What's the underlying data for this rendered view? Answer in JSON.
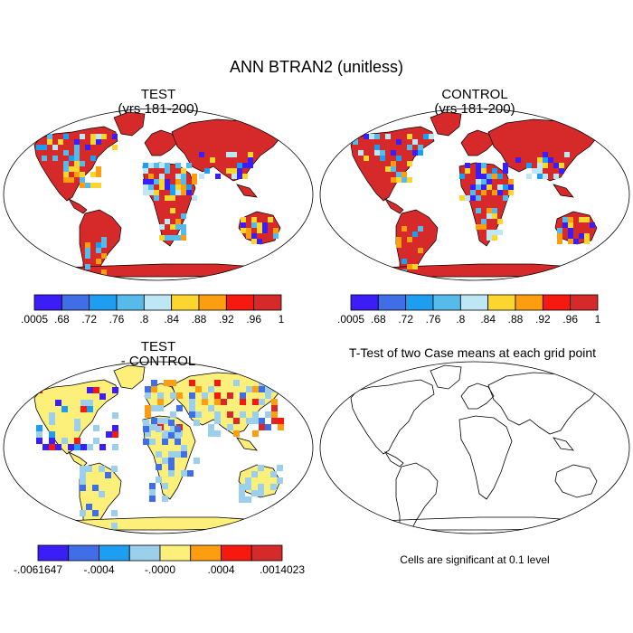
{
  "figure": {
    "title": "ANN BTRAN2 (unitless)",
    "note": "Cells are significant at 0.1 level"
  },
  "panels": [
    {
      "title": "TEST",
      "subtitle": "(yrs 181-200)"
    },
    {
      "title": "CONTROL",
      "subtitle": "(yrs 181-200)"
    },
    {
      "title": "TEST",
      "subtitle": "- CONTROL"
    },
    {
      "title": "T-Test of two Case means at each grid point",
      "subtitle": ""
    }
  ],
  "colorbars": {
    "absolute": {
      "labels": [
        ".0005",
        ".68",
        ".72",
        ".76",
        ".8",
        ".84",
        ".88",
        ".92",
        ".96",
        "1"
      ],
      "colors": [
        "#3b1ef5",
        "#3f6ee6",
        "#1e9ef0",
        "#56baea",
        "#bfe6f5",
        "#fcd52e",
        "#fd9d10",
        "#f5190f",
        "#d62a2a"
      ]
    },
    "difference": {
      "labels": [
        "-.0061647",
        "-.0004",
        "-.0000",
        ".0004",
        ".0014023"
      ],
      "colors": [
        "#3b1ef5",
        "#3f6ee6",
        "#1e9ef0",
        "#9ccfec",
        "#fdf07a",
        "#fd9d10",
        "#f5190f",
        "#d62a2a"
      ]
    }
  },
  "map_colors": {
    "land_red": "#d62a2a",
    "bright_red": "#f5190f",
    "diff_yellow": "#fdf07a",
    "diff_light_blue": "#9ccfec",
    "outline": "#000000"
  }
}
